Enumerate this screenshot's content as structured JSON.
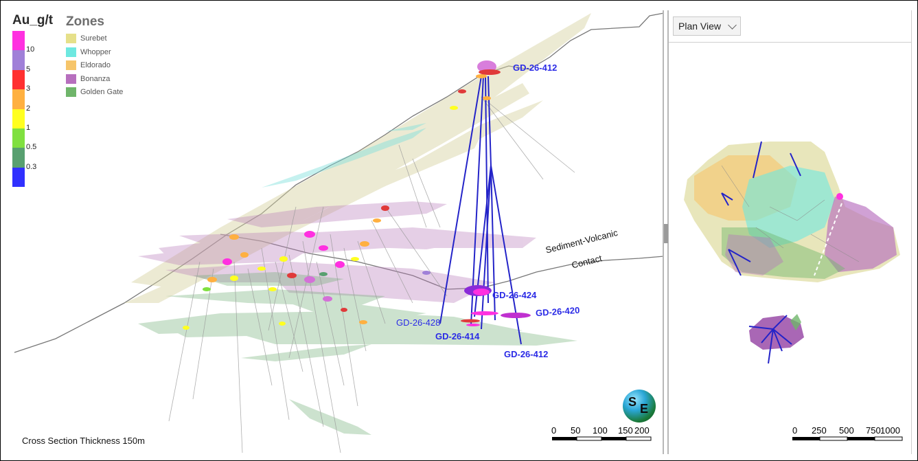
{
  "legend": {
    "title": "Au_g/t",
    "ticks": [
      "10",
      "5",
      "3",
      "2",
      "1",
      "0.5",
      "0.3"
    ],
    "colors": [
      "#ff30e0",
      "#a080d8",
      "#ff3030",
      "#ffb040",
      "#ffff20",
      "#80e040",
      "#58a070",
      "#3030ff"
    ]
  },
  "zones": {
    "title": "Zones",
    "items": [
      {
        "label": "Surebet",
        "color": "#e6e08a"
      },
      {
        "label": "Whopper",
        "color": "#6ee8e0"
      },
      {
        "label": "Eldorado",
        "color": "#f6c56a"
      },
      {
        "label": "Bonanza",
        "color": "#b76fbe"
      },
      {
        "label": "Golden Gate",
        "color": "#6fb56a"
      }
    ]
  },
  "section": {
    "hole_labels": {
      "top": "GD-26-412",
      "h424": "GD-26-424",
      "h420": "GD-26-420",
      "h428": "GD-26-428",
      "h414": "GD-26-414",
      "bottom": "GD-26-412"
    },
    "contact_label": {
      "line1": "Sediment-Volcanic",
      "line2": "Contact"
    },
    "thickness_note": "Cross Section Thickness 150m",
    "scale_labels": [
      "0",
      "50",
      "100",
      "150",
      "200"
    ],
    "logo": {
      "s": "S",
      "e": "E"
    }
  },
  "plan": {
    "dropdown_value": "Plan View",
    "scale_labels": [
      "0",
      "250",
      "500",
      "750",
      "1000"
    ]
  }
}
